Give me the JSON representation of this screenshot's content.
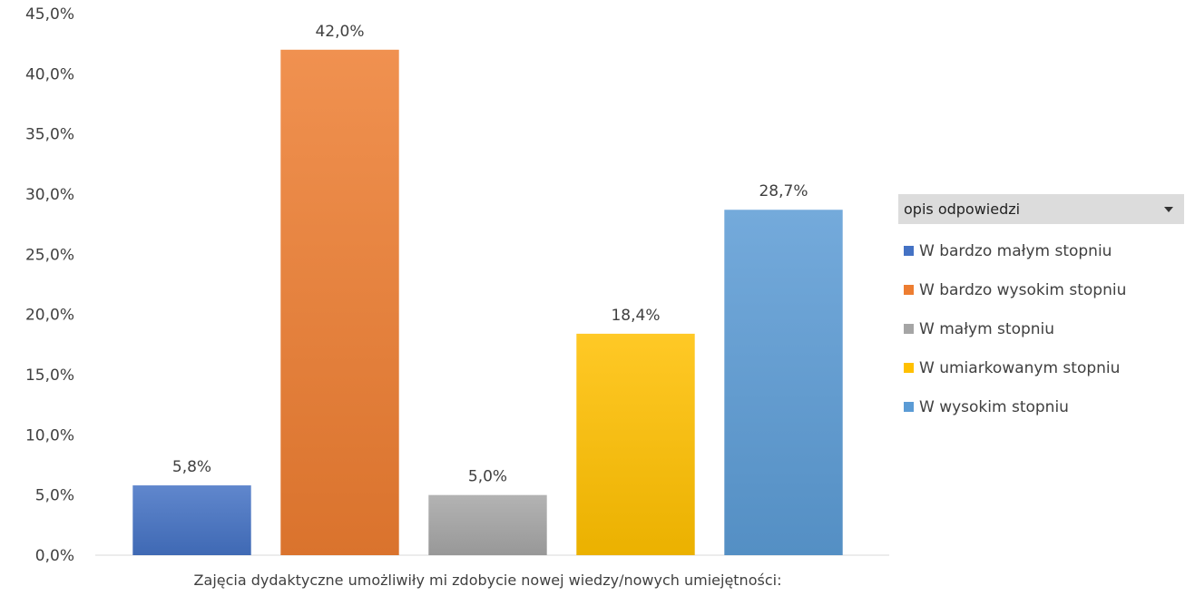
{
  "chart_data": {
    "type": "bar",
    "xlabel": "Zajęcia dydaktyczne umożliwiły mi zdobycie nowej wiedzy/nowych umiejętności:",
    "ylim": [
      0,
      45
    ],
    "y_ticks": [
      "0,0%",
      "5,0%",
      "10,0%",
      "15,0%",
      "20,0%",
      "25,0%",
      "30,0%",
      "35,0%",
      "40,0%",
      "45,0%"
    ],
    "grid": false,
    "legend_position": "right",
    "series": [
      {
        "name": "W bardzo małym stopniu",
        "value": 5.8,
        "label": "5,8%",
        "color": "#4472c4"
      },
      {
        "name": "W bardzo wysokim stopniu",
        "value": 42.0,
        "label": "42,0%",
        "color": "#ed7d31"
      },
      {
        "name": "W małym stopniu",
        "value": 5.0,
        "label": "5,0%",
        "color": "#a5a5a5"
      },
      {
        "name": "W umiarkowanym stopniu",
        "value": 18.4,
        "label": "18,4%",
        "color": "#ffc000"
      },
      {
        "name": "W wysokim stopniu",
        "value": 28.7,
        "label": "28,7%",
        "color": "#5b9bd5"
      }
    ]
  },
  "legend": {
    "title": "opis odpowiedzi",
    "dropdown_icon": "chevron-down-icon"
  }
}
